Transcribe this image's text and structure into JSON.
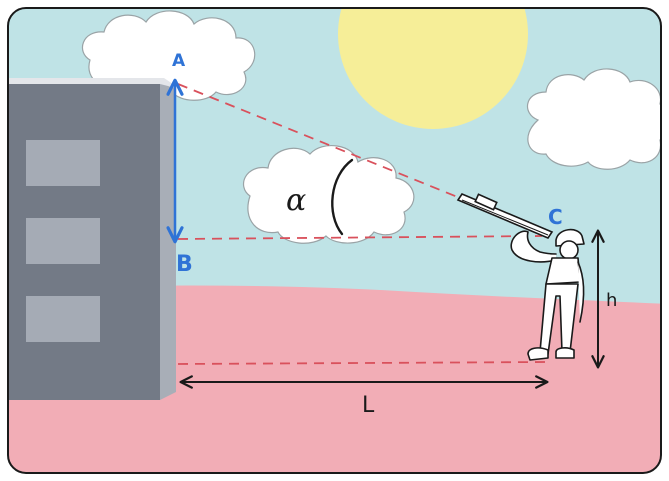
{
  "labels": {
    "point_a": "A",
    "point_b": "B",
    "point_c": "C",
    "angle": "α",
    "height": "h",
    "distance": "L"
  },
  "colors": {
    "sky": "#bfe3e6",
    "ground": "#f2adb6",
    "sun": "#f6ee98",
    "building_front": "#737a86",
    "building_side": "#a8aeb7",
    "building_roof": "#e4e6ea",
    "window": "#a5abb5",
    "label_blue": "#2f73d6",
    "dashed_red": "#d9515c",
    "ink": "#1a1a1a"
  },
  "icons": [
    "cloud-icon",
    "sun-icon",
    "telescope-icon",
    "person-icon"
  ]
}
